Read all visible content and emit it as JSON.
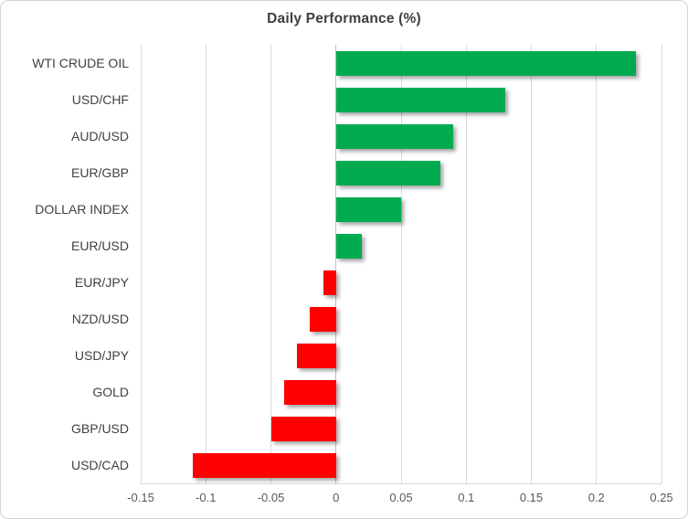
{
  "chart_data": {
    "type": "bar",
    "orientation": "horizontal",
    "title": "Daily Performance (%)",
    "categories": [
      "WTI CRUDE OIL",
      "USD/CHF",
      "AUD/USD",
      "EUR/GBP",
      "DOLLAR INDEX",
      "EUR/USD",
      "EUR/JPY",
      "NZD/USD",
      "USD/JPY",
      "GOLD",
      "GBP/USD",
      "USD/CAD"
    ],
    "values": [
      0.23,
      0.13,
      0.09,
      0.08,
      0.05,
      0.02,
      -0.01,
      -0.02,
      -0.03,
      -0.04,
      -0.05,
      -0.11
    ],
    "xlim": [
      -0.15,
      0.25
    ],
    "x_ticks": [
      -0.15,
      -0.1,
      -0.05,
      0,
      0.05,
      0.1,
      0.15,
      0.2,
      0.25
    ],
    "x_tick_labels": [
      "-0.15",
      "-0.1",
      "-0.05",
      "0",
      "0.05",
      "0.1",
      "0.15",
      "0.2",
      "0.25"
    ],
    "grid": true,
    "legend": "none",
    "positive_color": "#00ab4f",
    "negative_color": "#ff0000",
    "gridline_color": "#d9d9d9",
    "zero_axis_color": "#bfbfbf",
    "title_color": "#3f3f3f",
    "category_label_color": "#404040",
    "tick_label_color": "#595959"
  }
}
